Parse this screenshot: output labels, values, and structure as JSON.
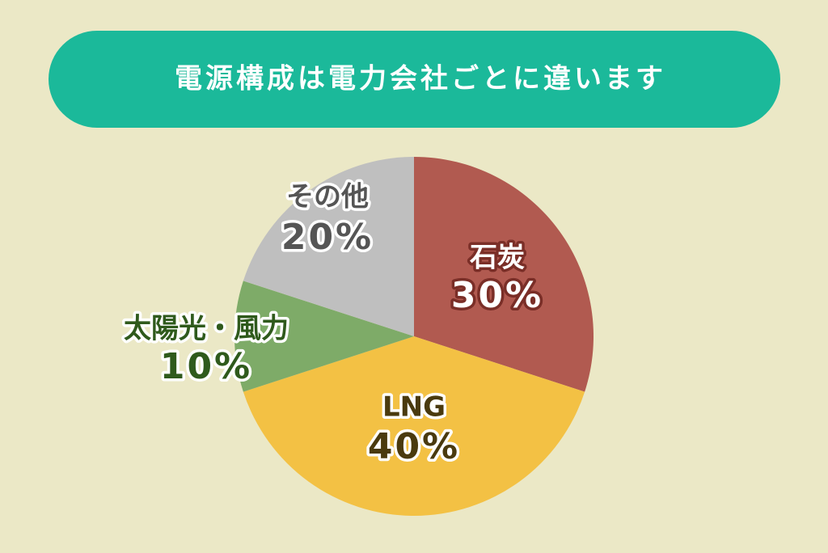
{
  "chart_data": {
    "type": "pie",
    "title": "電源構成は電力会社ごとに違います",
    "categories": [
      "石炭",
      "LNG",
      "太陽光・風力",
      "その他"
    ],
    "values": [
      30,
      40,
      10,
      20
    ],
    "value_labels": [
      "30%",
      "40%",
      "10%",
      "20%"
    ],
    "colors": [
      "#b15a50",
      "#f3c144",
      "#7eab68",
      "#bfbfbf"
    ]
  }
}
